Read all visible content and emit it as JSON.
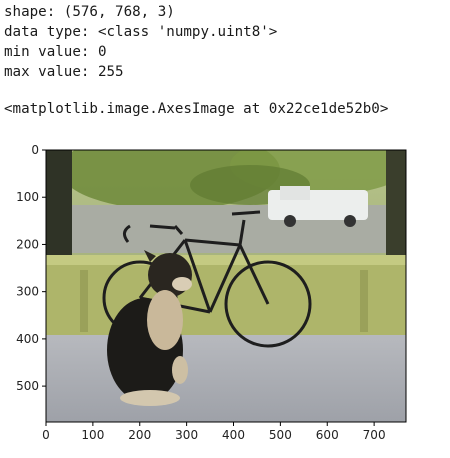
{
  "output": {
    "lines": [
      "shape: (576, 768, 3)",
      "data type: <class 'numpy.uint8'>",
      "min value: 0",
      "max value: 255"
    ],
    "repr": "<matplotlib.image.AxesImage at 0x22ce1de52b0>"
  },
  "image_plot": {
    "image_subject": "photo of a dog sitting on a porch next to a bicycle",
    "x_ticks": [
      "0",
      "100",
      "200",
      "300",
      "400",
      "500",
      "600",
      "700"
    ],
    "y_ticks": [
      "0",
      "100",
      "200",
      "300",
      "400",
      "500"
    ],
    "x_tick_values": [
      0,
      100,
      200,
      300,
      400,
      500,
      600,
      700
    ],
    "y_tick_values": [
      0,
      100,
      200,
      300,
      400,
      500
    ],
    "x_range": [
      0,
      768
    ],
    "y_range": [
      0,
      576
    ]
  }
}
